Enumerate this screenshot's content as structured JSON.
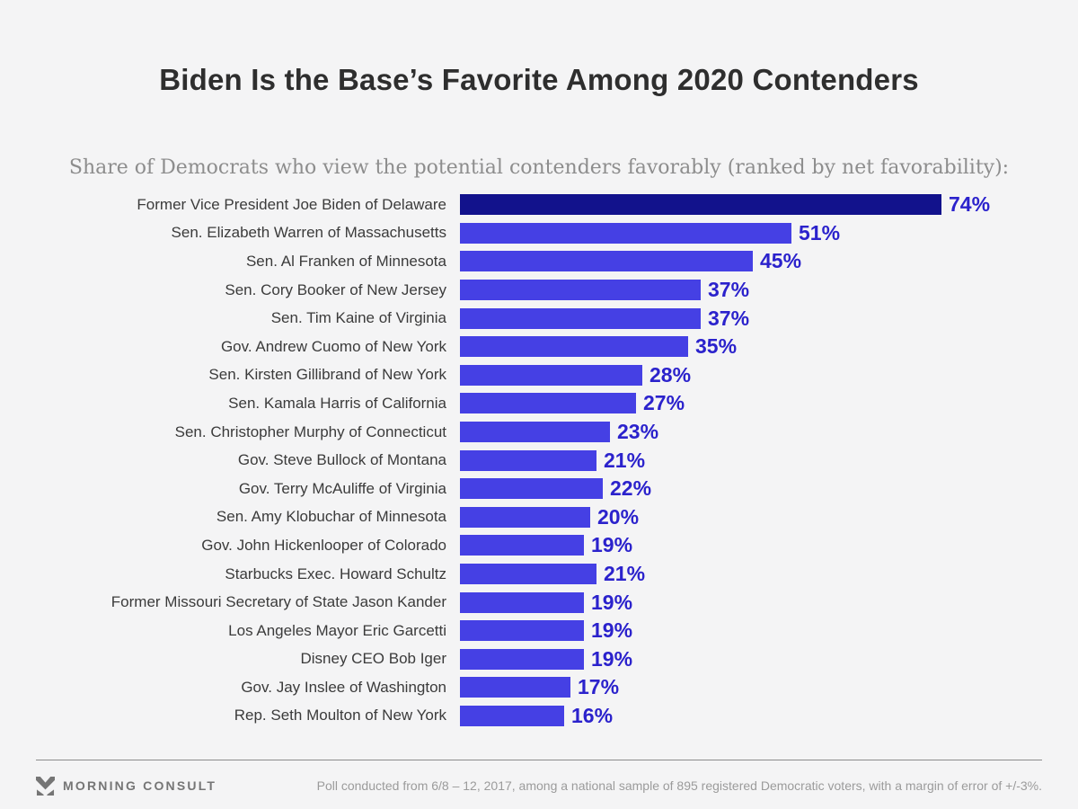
{
  "title": "Biden Is the Base’s Favorite Among 2020 Contenders",
  "subtitle": "Share of Democrats who view the potential contenders favorably (ranked by net favorability):",
  "chart_data": {
    "type": "bar",
    "orientation": "horizontal",
    "unit": "%",
    "value_suffix": "%",
    "categories": [
      "Former Vice President Joe Biden of Delaware",
      "Sen. Elizabeth Warren of Massachusetts",
      "Sen. Al Franken of Minnesota",
      "Sen. Cory Booker of New Jersey",
      "Sen. Tim Kaine of Virginia",
      "Gov. Andrew Cuomo of New York",
      "Sen. Kirsten Gillibrand of New York",
      "Sen. Kamala Harris of California",
      "Sen. Christopher Murphy of Connecticut",
      "Gov. Steve Bullock of Montana",
      "Gov. Terry McAuliffe of Virginia",
      "Sen. Amy Klobuchar of Minnesota",
      "Gov. John Hickenlooper of Colorado",
      "Starbucks Exec. Howard Schultz",
      "Former Missouri Secretary of State Jason Kander",
      "Los Angeles Mayor Eric Garcetti",
      "Disney CEO Bob Iger",
      "Gov. Jay Inslee of Washington",
      "Rep. Seth Moulton of New York"
    ],
    "values": [
      74,
      51,
      45,
      37,
      37,
      35,
      28,
      27,
      23,
      21,
      22,
      20,
      19,
      21,
      19,
      19,
      19,
      17,
      16
    ],
    "highlight_index": 0,
    "xlim": [
      0,
      80
    ],
    "grid": false,
    "axes_visible": false,
    "data_labels": "outside-end"
  },
  "colors": {
    "background": "#f4f4f5",
    "title": "#2e2e2e",
    "subtitle": "#8d8d8d",
    "category_label": "#3b3b3b",
    "bar": "#4540e4",
    "bar_leader": "#12128c",
    "value_label": "#2b22cc",
    "divider": "#8c8c8c",
    "footer_text": "#9b9b9b",
    "brand": "#757575"
  },
  "footer": {
    "brand": "MORNING CONSULT",
    "logo_icon": "morning-consult-m-icon",
    "note": "Poll conducted from 6/8 – 12, 2017, among a national sample of 895 registered Democratic voters, with a margin of error of +/-3%."
  }
}
